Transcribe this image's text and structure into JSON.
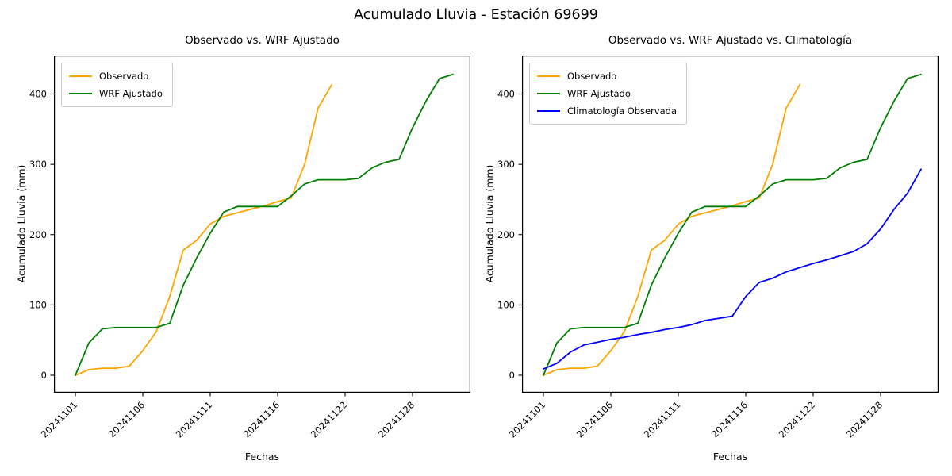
{
  "figure": {
    "suptitle": "Acumulado Lluvia - Estación 69699"
  },
  "chart_data": [
    {
      "type": "line",
      "title": "Observado vs. WRF Ajustado",
      "xlabel": "Fechas",
      "ylabel": "Acumulado Lluvia (mm)",
      "yticks": [
        0,
        100,
        200,
        300,
        400
      ],
      "ylim": [
        -21,
        449
      ],
      "grid": false,
      "legend_position": "upper left",
      "x_type": "date-index",
      "xtick_indices": [
        0,
        5,
        10,
        15,
        20,
        25
      ],
      "xtick_labels": [
        "20241101",
        "20241106",
        "20241111",
        "20241116",
        "20241122",
        "20241128"
      ],
      "n_points": 29,
      "series": [
        {
          "name": "Observado",
          "color": "#FFA500",
          "values": [
            0,
            8,
            10,
            10,
            13,
            35,
            62,
            112,
            178,
            192,
            215,
            226,
            231,
            236,
            241,
            247,
            252,
            300,
            380,
            413
          ]
        },
        {
          "name": "WRF Ajustado",
          "color": "#008000",
          "values": [
            0,
            46,
            66,
            68,
            68,
            68,
            68,
            74,
            128,
            167,
            202,
            232,
            240,
            240,
            240,
            240,
            255,
            272,
            278,
            278,
            278,
            280,
            295,
            303,
            307,
            352,
            390,
            422,
            428
          ]
        }
      ]
    },
    {
      "type": "line",
      "title": "Observado vs. WRF Ajustado vs. Climatología",
      "xlabel": "Fechas",
      "ylabel": "Acumulado Lluvia (mm)",
      "yticks": [
        0,
        100,
        200,
        300,
        400
      ],
      "ylim": [
        -21,
        449
      ],
      "grid": false,
      "legend_position": "upper left",
      "x_type": "date-index",
      "xtick_indices": [
        0,
        5,
        10,
        15,
        20,
        25
      ],
      "xtick_labels": [
        "20241101",
        "20241106",
        "20241111",
        "20241116",
        "20241122",
        "20241128"
      ],
      "n_points": 29,
      "series": [
        {
          "name": "Observado",
          "color": "#FFA500",
          "values": [
            0,
            8,
            10,
            10,
            13,
            35,
            62,
            112,
            178,
            192,
            215,
            226,
            231,
            236,
            241,
            247,
            252,
            300,
            380,
            413
          ]
        },
        {
          "name": "WRF Ajustado",
          "color": "#008000",
          "values": [
            0,
            46,
            66,
            68,
            68,
            68,
            68,
            74,
            128,
            167,
            202,
            232,
            240,
            240,
            240,
            240,
            255,
            272,
            278,
            278,
            278,
            280,
            295,
            303,
            307,
            352,
            390,
            422,
            428
          ]
        },
        {
          "name": "Climatología Observada",
          "color": "#0000FF",
          "values": [
            9,
            17,
            33,
            43,
            47,
            51,
            54,
            58,
            61,
            65,
            68,
            72,
            78,
            81,
            84,
            112,
            132,
            138,
            147,
            153,
            159,
            164,
            170,
            176,
            187,
            208,
            236,
            259,
            293
          ]
        }
      ]
    }
  ]
}
